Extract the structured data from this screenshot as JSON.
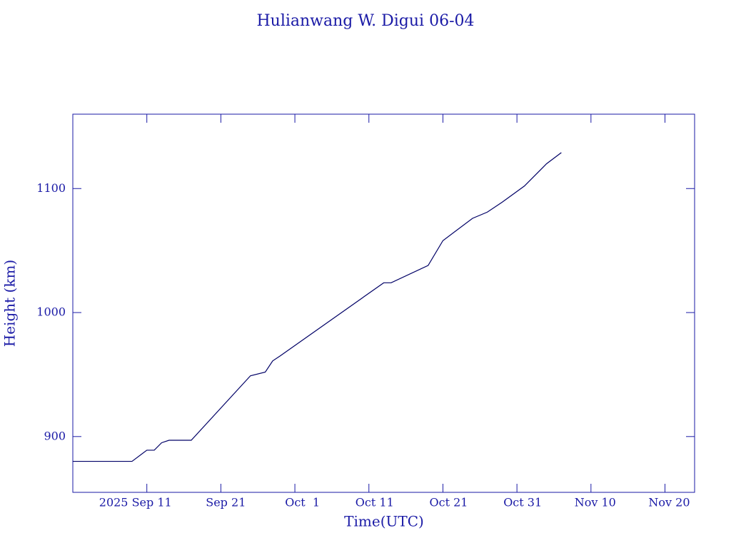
{
  "chart_data": {
    "type": "line",
    "title": "Hulianwang W. Digui 06-04",
    "x_label": "Time(UTC)",
    "y_label": "Height (km)",
    "x": [
      "2025-09-01",
      "2025-09-09",
      "2025-09-11",
      "2025-09-12",
      "2025-09-13",
      "2025-09-14",
      "2025-09-17",
      "2025-09-25",
      "2025-09-27",
      "2025-09-28",
      "2025-09-29",
      "2025-10-13",
      "2025-10-14",
      "2025-10-19",
      "2025-10-21",
      "2025-10-25",
      "2025-10-27",
      "2025-10-29",
      "2025-11-01",
      "2025-11-04",
      "2025-11-06"
    ],
    "series": [
      {
        "name": "Height",
        "color": "#000066",
        "values": [
          880,
          880,
          889,
          889,
          895,
          897,
          897,
          949,
          952,
          961,
          965,
          1024,
          1024,
          1038,
          1058,
          1076,
          1081,
          1089,
          1102,
          1120,
          1129
        ]
      }
    ],
    "xlim": [
      "2025-09-01",
      "2025-11-24"
    ],
    "xticks": [
      {
        "value": "2025-09-11",
        "label": "2025 Sep 11"
      },
      {
        "value": "2025-09-21",
        "label": "Sep 21"
      },
      {
        "value": "2025-10-01",
        "label": "Oct  1"
      },
      {
        "value": "2025-10-11",
        "label": "Oct 11"
      },
      {
        "value": "2025-10-21",
        "label": "Oct 21"
      },
      {
        "value": "2025-10-31",
        "label": "Oct 31"
      },
      {
        "value": "2025-11-10",
        "label": "Nov 10"
      },
      {
        "value": "2025-11-20",
        "label": "Nov 20"
      }
    ],
    "ylim": [
      855,
      1160
    ],
    "yticks": [
      900,
      1000,
      1100
    ]
  }
}
